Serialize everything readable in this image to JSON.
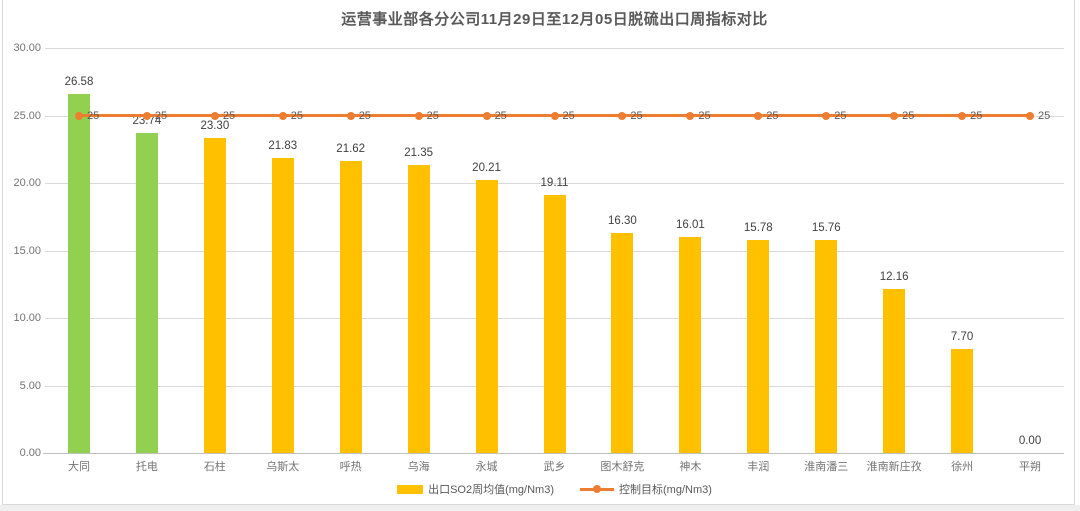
{
  "chart_data": {
    "type": "bar",
    "title": "运营事业部各分公司11月29日至12月05日脱硫出口周指标对比",
    "categories": [
      "大同",
      "托电",
      "石柱",
      "乌斯太",
      "呼热",
      "乌海",
      "永城",
      "武乡",
      "图木舒克",
      "神木",
      "丰润",
      "淮南潘三",
      "淮南新庄孜",
      "徐州",
      "平朔"
    ],
    "series": [
      {
        "name": "出口SO2周均值(mg/Nm3)",
        "type": "bar",
        "values": [
          26.58,
          23.74,
          23.3,
          21.83,
          21.62,
          21.35,
          20.21,
          19.11,
          16.3,
          16.01,
          15.78,
          15.76,
          12.16,
          7.7,
          0.0
        ],
        "default_color": "#FFC000",
        "highlight_color": "#92D050",
        "highlight_indices": [
          0,
          1
        ]
      },
      {
        "name": "控制目标(mg/Nm3)",
        "type": "line",
        "values": [
          25,
          25,
          25,
          25,
          25,
          25,
          25,
          25,
          25,
          25,
          25,
          25,
          25,
          25,
          25
        ],
        "color": "#ED7D31"
      }
    ],
    "xlabel": "",
    "ylabel": "",
    "ylim": [
      0,
      30
    ],
    "ytick_step": 5,
    "ytick_labels": [
      "0.00",
      "5.00",
      "10.00",
      "15.00",
      "20.00",
      "25.00",
      "30.00"
    ],
    "grid": true,
    "legend_position": "bottom"
  },
  "colors": {
    "title_text": "#595959",
    "axis_text": "#737373",
    "data_label_text": "#404040",
    "gridline": "#d9d9d9",
    "axis_line": "#bfbfbf",
    "frame_border": "#d9d9d9"
  }
}
